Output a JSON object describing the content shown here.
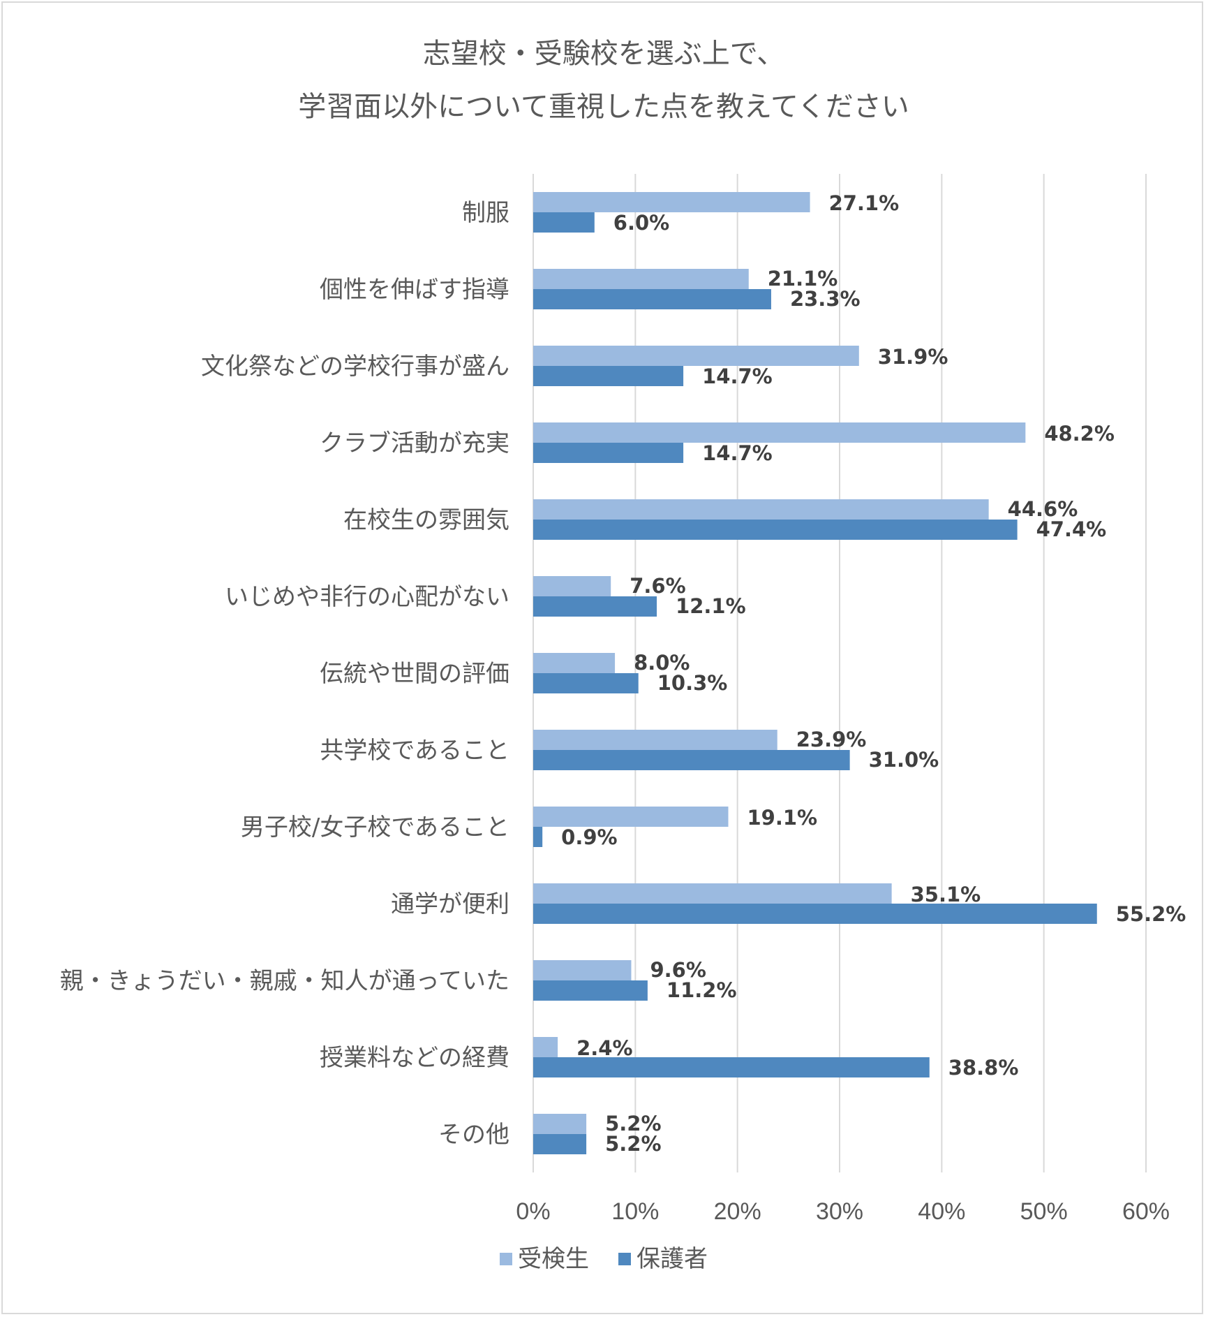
{
  "chart_data": {
    "type": "bar",
    "orientation": "horizontal",
    "title": [
      "志望校・受験校を選ぶ上で、",
      "学習面以外について重視した点を教えてください"
    ],
    "categories": [
      "制服",
      "個性を伸ばす指導",
      "文化祭などの学校行事が盛ん",
      "クラブ活動が充実",
      "在校生の雰囲気",
      "いじめや非行の心配がない",
      "伝統や世間の評価",
      "共学校であること",
      "男子校/女子校であること",
      "通学が便利",
      "親・きょうだい・親戚・知人が通っていた",
      "授業料などの経費",
      "その他"
    ],
    "series": [
      {
        "name": "受検生",
        "color": "#9bbae0",
        "values": [
          27.1,
          21.1,
          31.9,
          48.2,
          44.6,
          7.6,
          8.0,
          23.9,
          19.1,
          35.1,
          9.6,
          2.4,
          5.2
        ],
        "labels": [
          "27.1%",
          "21.1%",
          "31.9%",
          "48.2%",
          "44.6%",
          "7.6%",
          "8.0%",
          "23.9%",
          "19.1%",
          "35.1%",
          "9.6%",
          "2.4%",
          "5.2%"
        ]
      },
      {
        "name": "保護者",
        "color": "#4f88bf",
        "values": [
          6.0,
          23.3,
          14.7,
          14.7,
          47.4,
          12.1,
          10.3,
          31.0,
          0.9,
          55.2,
          11.2,
          38.8,
          5.2
        ],
        "labels": [
          "6.0%",
          "23.3%",
          "14.7%",
          "14.7%",
          "47.4%",
          "12.1%",
          "10.3%",
          "31.0%",
          "0.9%",
          "55.2%",
          "11.2%",
          "38.8%",
          "5.2%"
        ]
      }
    ],
    "xlim": [
      0,
      60
    ],
    "x_ticks": [
      "0%",
      "10%",
      "20%",
      "30%",
      "40%",
      "50%",
      "60%"
    ],
    "grid": true,
    "legend_position": "bottom"
  }
}
